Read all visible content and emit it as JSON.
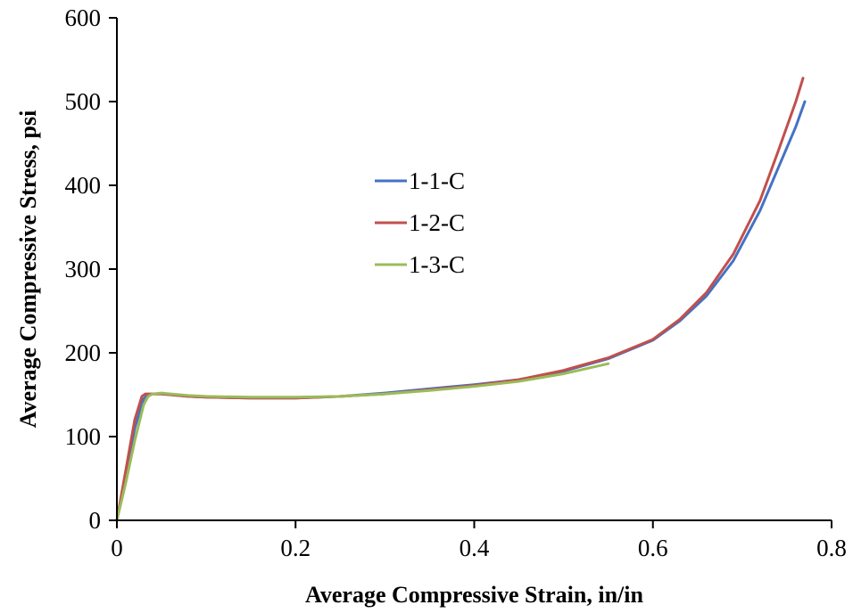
{
  "chart_data": {
    "type": "line",
    "title": "",
    "xlabel": "Average Compressive Strain, in/in",
    "ylabel": "Average Compressive Stress, psi",
    "xlim": [
      0,
      0.8
    ],
    "ylim": [
      0,
      600
    ],
    "xticks": [
      0,
      0.2,
      0.4,
      0.6,
      0.8
    ],
    "xtick_labels": [
      "0",
      "0.2",
      "0.4",
      "0.6",
      "0.8"
    ],
    "yticks": [
      0,
      100,
      200,
      300,
      400,
      500,
      600
    ],
    "ytick_labels": [
      "0",
      "100",
      "200",
      "300",
      "400",
      "500",
      "600"
    ],
    "grid": false,
    "legend_position": "center-left",
    "series": [
      {
        "name": "1-1-C",
        "color": "#4472C4",
        "x": [
          0,
          0.01,
          0.02,
          0.03,
          0.035,
          0.04,
          0.05,
          0.06,
          0.08,
          0.1,
          0.15,
          0.2,
          0.25,
          0.3,
          0.35,
          0.4,
          0.45,
          0.5,
          0.55,
          0.6,
          0.63,
          0.66,
          0.69,
          0.72,
          0.74,
          0.76,
          0.77
        ],
        "y": [
          0,
          55,
          110,
          145,
          150,
          151,
          151,
          150,
          148,
          147,
          146,
          146,
          148,
          152,
          157,
          162,
          168,
          178,
          193,
          215,
          238,
          268,
          310,
          370,
          420,
          470,
          500
        ]
      },
      {
        "name": "1-2-C",
        "color": "#C0504D",
        "x": [
          0,
          0.01,
          0.02,
          0.028,
          0.032,
          0.04,
          0.05,
          0.06,
          0.08,
          0.1,
          0.15,
          0.2,
          0.25,
          0.3,
          0.35,
          0.4,
          0.45,
          0.5,
          0.55,
          0.6,
          0.63,
          0.66,
          0.69,
          0.72,
          0.74,
          0.76,
          0.768
        ],
        "y": [
          0,
          60,
          120,
          148,
          151,
          151,
          151,
          150,
          148,
          147,
          146,
          146,
          148,
          151,
          156,
          161,
          168,
          179,
          194,
          216,
          240,
          272,
          318,
          382,
          440,
          500,
          528
        ]
      },
      {
        "name": "1-3-C",
        "color": "#9BBB59",
        "x": [
          0,
          0.01,
          0.02,
          0.03,
          0.035,
          0.04,
          0.05,
          0.06,
          0.08,
          0.1,
          0.15,
          0.2,
          0.25,
          0.3,
          0.35,
          0.4,
          0.45,
          0.5,
          0.55
        ],
        "y": [
          0,
          45,
          95,
          138,
          148,
          151,
          152,
          151,
          149,
          148,
          147,
          147,
          148,
          151,
          155,
          160,
          166,
          175,
          187
        ]
      }
    ]
  }
}
